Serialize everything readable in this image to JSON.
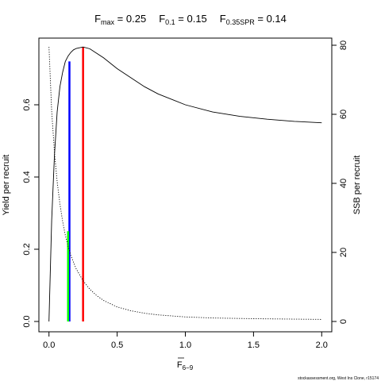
{
  "chart_data": {
    "type": "line",
    "title_parts": [
      {
        "main": "F",
        "sub": "max",
        "rest": " = 0.25"
      },
      {
        "main": "F",
        "sub": "0.1",
        "rest": " = 0.15"
      },
      {
        "main": "F",
        "sub": "0.35SPR",
        "rest": " = 0.14"
      }
    ],
    "xlabel": {
      "main": "F",
      "sub": "6−9",
      "overline": true
    },
    "ylabel_left": "Yield per recruit",
    "ylabel_right": "SSB per recruit",
    "xlim": [
      0,
      2
    ],
    "ylim_left": [
      0,
      0.76
    ],
    "ylim_right": [
      0,
      80
    ],
    "x_ticks": [
      0,
      0.5,
      1.0,
      1.5,
      2.0
    ],
    "x_tick_labels": [
      "0.0",
      "0.5",
      "1.0",
      "1.5",
      "2.0"
    ],
    "y_left_ticks": [
      0.0,
      0.2,
      0.4,
      0.6
    ],
    "y_left_tick_labels": [
      "0.0",
      "0.2",
      "0.4",
      "0.6"
    ],
    "y_right_ticks": [
      0,
      20,
      40,
      60,
      80
    ],
    "y_right_tick_labels": [
      "0",
      "20",
      "40",
      "60",
      "80"
    ],
    "series": [
      {
        "style": "solid",
        "axis": "left",
        "x": [
          0,
          0.02,
          0.04,
          0.06,
          0.08,
          0.1,
          0.12,
          0.14,
          0.16,
          0.18,
          0.2,
          0.25,
          0.3,
          0.4,
          0.5,
          0.6,
          0.7,
          0.8,
          1.0,
          1.2,
          1.4,
          1.6,
          1.8,
          2.0
        ],
        "values": [
          0,
          0.28,
          0.46,
          0.58,
          0.65,
          0.69,
          0.72,
          0.735,
          0.745,
          0.752,
          0.756,
          0.76,
          0.755,
          0.73,
          0.7,
          0.675,
          0.65,
          0.63,
          0.6,
          0.58,
          0.568,
          0.56,
          0.554,
          0.55
        ]
      },
      {
        "style": "dotted",
        "axis": "right",
        "x": [
          0,
          0.02,
          0.04,
          0.06,
          0.08,
          0.1,
          0.12,
          0.14,
          0.16,
          0.18,
          0.2,
          0.25,
          0.3,
          0.35,
          0.4,
          0.5,
          0.6,
          0.7,
          0.8,
          1.0,
          1.2,
          1.5,
          2.0
        ],
        "values": [
          79.5,
          61,
          49,
          40.5,
          34,
          29,
          25,
          21.8,
          19.2,
          17.1,
          15.2,
          11.8,
          9.3,
          7.5,
          6.1,
          4.2,
          3.1,
          2.4,
          1.9,
          1.3,
          1.0,
          0.8,
          0.6
        ]
      }
    ],
    "reference_lines": [
      {
        "name": "Fmax",
        "x": 0.25,
        "y_top": 0.76,
        "color": "#ff0000"
      },
      {
        "name": "F0.1",
        "x": 0.15,
        "y_top": 0.72,
        "color": "#0000ff"
      },
      {
        "name": "F0.35SPR",
        "x": 0.14,
        "y_top": 0.25,
        "color": "#00ff00"
      }
    ],
    "grid": false,
    "credit": "stockassessment.org, West Ins Clone, r15174"
  }
}
